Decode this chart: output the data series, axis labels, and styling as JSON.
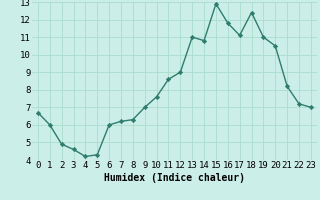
{
  "x": [
    0,
    1,
    2,
    3,
    4,
    5,
    6,
    7,
    8,
    9,
    10,
    11,
    12,
    13,
    14,
    15,
    16,
    17,
    18,
    19,
    20,
    21,
    22,
    23
  ],
  "y": [
    6.7,
    6.0,
    4.9,
    4.6,
    4.2,
    4.3,
    6.0,
    6.2,
    6.3,
    7.0,
    7.6,
    8.6,
    9.0,
    11.0,
    10.8,
    12.9,
    11.8,
    11.1,
    12.4,
    11.0,
    10.5,
    8.2,
    7.2,
    7.0
  ],
  "line_color": "#2e7d6e",
  "marker": "D",
  "marker_size": 2.2,
  "bg_color": "#cceee8",
  "grid_color": "#aaddcc",
  "xlabel": "Humidex (Indice chaleur)",
  "xlim": [
    -0.5,
    23.5
  ],
  "ylim": [
    4,
    13
  ],
  "yticks": [
    4,
    5,
    6,
    7,
    8,
    9,
    10,
    11,
    12,
    13
  ],
  "xticks": [
    0,
    1,
    2,
    3,
    4,
    5,
    6,
    7,
    8,
    9,
    10,
    11,
    12,
    13,
    14,
    15,
    16,
    17,
    18,
    19,
    20,
    21,
    22,
    23
  ],
  "xlabel_fontsize": 7,
  "tick_fontsize": 6.5,
  "line_width": 1.0
}
